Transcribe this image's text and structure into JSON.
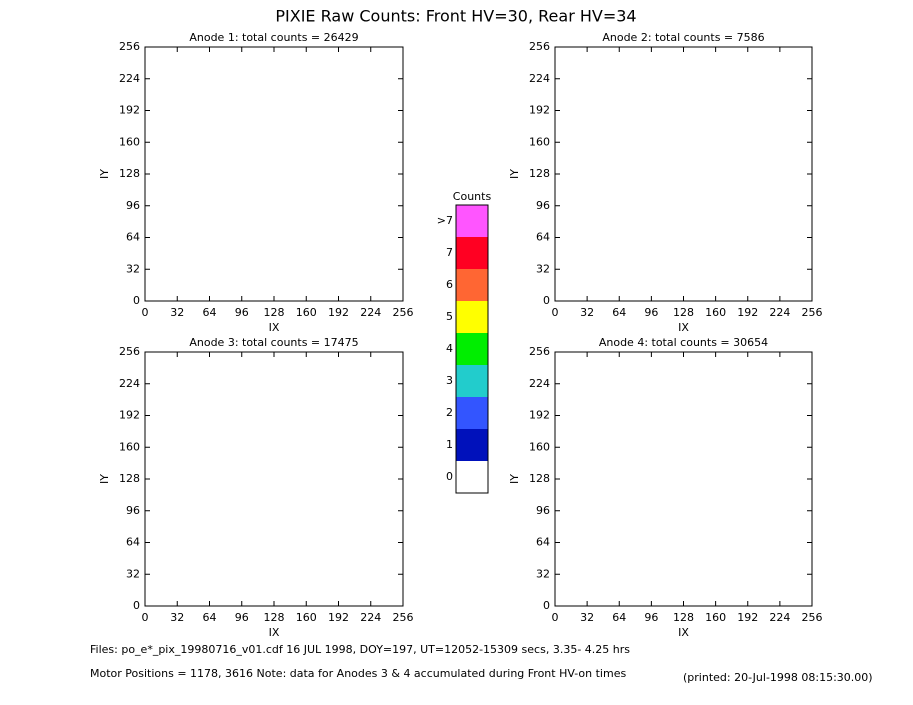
{
  "title": "PIXIE Raw Counts:  Front HV=30, Rear HV=34",
  "chart_data": [
    {
      "type": "heatmap",
      "title": "Anode 1: total counts = 26429",
      "x_label": "IX",
      "y_label": "IY",
      "xlim": [
        0,
        256
      ],
      "ylim": [
        0,
        256
      ],
      "xticks": [
        0,
        32,
        64,
        96,
        128,
        160,
        192,
        224,
        256
      ],
      "yticks": [
        0,
        32,
        64,
        96,
        128,
        160,
        192,
        224,
        256
      ]
    },
    {
      "type": "heatmap",
      "title": "Anode 2: total counts = 7586",
      "x_label": "IX",
      "y_label": "IY",
      "xlim": [
        0,
        256
      ],
      "ylim": [
        0,
        256
      ],
      "xticks": [
        0,
        32,
        64,
        96,
        128,
        160,
        192,
        224,
        256
      ],
      "yticks": [
        0,
        32,
        64,
        96,
        128,
        160,
        192,
        224,
        256
      ]
    },
    {
      "type": "heatmap",
      "title": "Anode 3: total counts = 17475",
      "x_label": "IX",
      "y_label": "IY",
      "xlim": [
        0,
        256
      ],
      "ylim": [
        0,
        256
      ],
      "xticks": [
        0,
        32,
        64,
        96,
        128,
        160,
        192,
        224,
        256
      ],
      "yticks": [
        0,
        32,
        64,
        96,
        128,
        160,
        192,
        224,
        256
      ]
    },
    {
      "type": "heatmap",
      "title": "Anode 4: total counts = 30654",
      "x_label": "IX",
      "y_label": "IY",
      "xlim": [
        0,
        256
      ],
      "ylim": [
        0,
        256
      ],
      "xticks": [
        0,
        32,
        64,
        96,
        128,
        160,
        192,
        224,
        256
      ],
      "yticks": [
        0,
        32,
        64,
        96,
        128,
        160,
        192,
        224,
        256
      ]
    }
  ],
  "colorbar": {
    "title": "Counts",
    "labels": [
      ">7",
      "7",
      "6",
      "5",
      "4",
      "3",
      "2",
      "1",
      "0"
    ],
    "colors": [
      "#ff55ff",
      "#ff0022",
      "#ff6633",
      "#ffff00",
      "#00ee00",
      "#22cccc",
      "#3355ff",
      "#0011bb",
      "#ffffff"
    ]
  },
  "footer": {
    "files": "Files: po_e*_pix_19980716_v01.cdf    16 JUL 1998, DOY=197, UT=12052-15309 secs,  3.35- 4.25 hrs",
    "motor": "Motor Positions = 1178, 3616   Note: data for Anodes 3 & 4 accumulated during Front HV-on times",
    "printed": "(printed: 20-Jul-1998 08:15:30.00)"
  }
}
